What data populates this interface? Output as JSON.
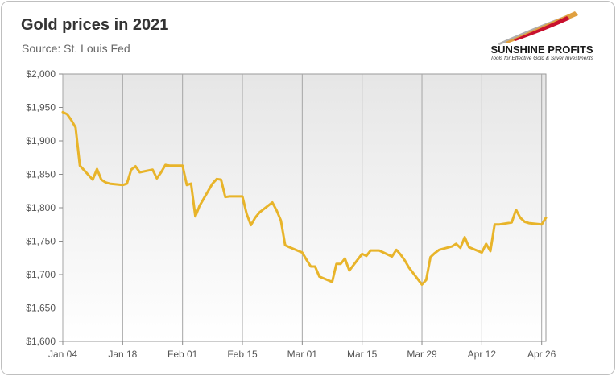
{
  "header": {
    "title": "Gold prices in 2021",
    "subtitle": "Source: St. Louis Fed"
  },
  "logo": {
    "name": "SUNSHINE PROFITS",
    "tagline": "Tools for Effective Gold & Silver Investments",
    "colors": [
      "#c8102e",
      "#e0a040",
      "#b0b0b0"
    ]
  },
  "chart_data": {
    "type": "line",
    "title": "Gold prices in 2021",
    "subtitle": "Source: St. Louis Fed",
    "xlabel": "",
    "ylabel": "",
    "x_range": [
      "2021-01-04",
      "2021-04-27"
    ],
    "ylim": [
      1600,
      2000
    ],
    "y_ticks": [
      1600,
      1650,
      1700,
      1750,
      1800,
      1850,
      1900,
      1950,
      2000
    ],
    "y_tick_labels": [
      "$1,600",
      "$1,650",
      "$1,700",
      "$1,750",
      "$1,800",
      "$1,850",
      "$1,900",
      "$1,950",
      "$2,000"
    ],
    "x_ticks": [
      "2021-01-04",
      "2021-01-18",
      "2021-02-01",
      "2021-02-15",
      "2021-03-01",
      "2021-03-15",
      "2021-03-29",
      "2021-04-12",
      "2021-04-26"
    ],
    "x_tick_labels": [
      "Jan 04",
      "Jan 18",
      "Feb 01",
      "Feb 15",
      "Mar 01",
      "Mar 15",
      "Mar 29",
      "Apr 12",
      "Apr 26"
    ],
    "grid": "vertical",
    "line_color": "#e8b42a",
    "series": [
      {
        "x": [
          "2021-01-04",
          "2021-01-05",
          "2021-01-06",
          "2021-01-07",
          "2021-01-08",
          "2021-01-11",
          "2021-01-12",
          "2021-01-13",
          "2021-01-14",
          "2021-01-15",
          "2021-01-18",
          "2021-01-19",
          "2021-01-20",
          "2021-01-21",
          "2021-01-22",
          "2021-01-25",
          "2021-01-26",
          "2021-01-27",
          "2021-01-28",
          "2021-01-29",
          "2021-02-01",
          "2021-02-02",
          "2021-02-03",
          "2021-02-04",
          "2021-02-05",
          "2021-02-08",
          "2021-02-09",
          "2021-02-10",
          "2021-02-11",
          "2021-02-12",
          "2021-02-15",
          "2021-02-16",
          "2021-02-17",
          "2021-02-18",
          "2021-02-19",
          "2021-02-22",
          "2021-02-23",
          "2021-02-24",
          "2021-02-25",
          "2021-02-26",
          "2021-03-01",
          "2021-03-02",
          "2021-03-03",
          "2021-03-04",
          "2021-03-05",
          "2021-03-08",
          "2021-03-09",
          "2021-03-10",
          "2021-03-11",
          "2021-03-12",
          "2021-03-15",
          "2021-03-16",
          "2021-03-17",
          "2021-03-18",
          "2021-03-19",
          "2021-03-22",
          "2021-03-23",
          "2021-03-24",
          "2021-03-25",
          "2021-03-26",
          "2021-03-29",
          "2021-03-30",
          "2021-03-31",
          "2021-04-01",
          "2021-04-02",
          "2021-04-05",
          "2021-04-06",
          "2021-04-07",
          "2021-04-08",
          "2021-04-09",
          "2021-04-12",
          "2021-04-13",
          "2021-04-14",
          "2021-04-15",
          "2021-04-16",
          "2021-04-19",
          "2021-04-20",
          "2021-04-21",
          "2021-04-22",
          "2021-04-23",
          "2021-04-26",
          "2021-04-27"
        ],
        "values": [
          1943,
          1940,
          1931,
          1920,
          1863,
          1842,
          1858,
          1842,
          1838,
          1836,
          1834,
          1836,
          1857,
          1862,
          1853,
          1857,
          1844,
          1853,
          1864,
          1863,
          1863,
          1834,
          1836,
          1787,
          1803,
          1836,
          1843,
          1842,
          1816,
          1817,
          1817,
          1791,
          1774,
          1785,
          1793,
          1808,
          1796,
          1781,
          1744,
          1741,
          1733,
          1722,
          1712,
          1712,
          1697,
          1689,
          1716,
          1716,
          1724,
          1706,
          1731,
          1728,
          1736,
          1736,
          1736,
          1727,
          1737,
          1730,
          1721,
          1710,
          1685,
          1692,
          1726,
          1732,
          1737,
          1742,
          1746,
          1740,
          1756,
          1741,
          1733,
          1746,
          1735,
          1775,
          1775,
          1778,
          1797,
          1785,
          1779,
          1777,
          1775,
          1785
        ]
      }
    ]
  }
}
